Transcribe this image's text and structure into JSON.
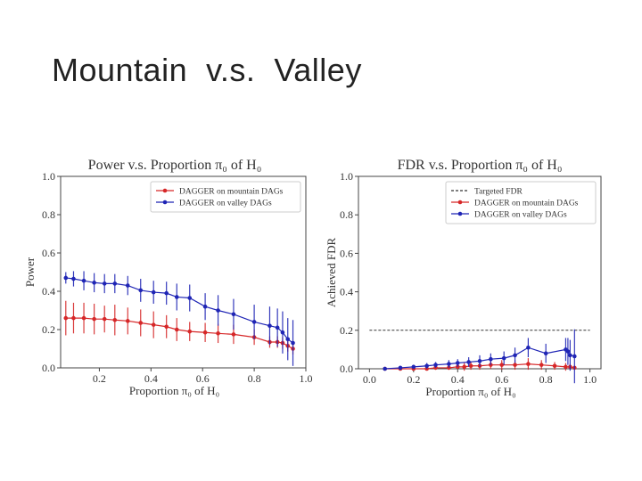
{
  "slide": {
    "title": "Mountain  v.s.  Valley"
  },
  "colors": {
    "mountain": "#d62728",
    "valley": "#1f25b5",
    "target": "#333333"
  },
  "chart_data": [
    {
      "type": "line",
      "title": "Power v.s. Proportion π₀ of H₀",
      "xlabel": "Proportion π₀ of H₀",
      "ylabel": "Power",
      "xlim": [
        0.05,
        1.0
      ],
      "ylim": [
        0.0,
        1.0
      ],
      "xticks": [
        "0.2",
        "0.4",
        "0.6",
        "0.8",
        "1.0"
      ],
      "yticks": [
        "0.0",
        "0.2",
        "0.4",
        "0.6",
        "0.8",
        "1.0"
      ],
      "legend_position": "top-right",
      "series": [
        {
          "name": "DAGGER on mountain DAGs",
          "color_key": "mountain",
          "x": [
            0.07,
            0.1,
            0.14,
            0.18,
            0.22,
            0.26,
            0.31,
            0.36,
            0.41,
            0.46,
            0.5,
            0.55,
            0.61,
            0.66,
            0.72,
            0.8,
            0.86,
            0.89,
            0.91,
            0.93,
            0.95
          ],
          "y": [
            0.26,
            0.26,
            0.26,
            0.255,
            0.255,
            0.25,
            0.245,
            0.235,
            0.225,
            0.215,
            0.2,
            0.19,
            0.185,
            0.18,
            0.175,
            0.16,
            0.135,
            0.135,
            0.13,
            0.115,
            0.1
          ],
          "err": [
            0.09,
            0.08,
            0.08,
            0.08,
            0.07,
            0.08,
            0.07,
            0.07,
            0.07,
            0.06,
            0.06,
            0.05,
            0.05,
            0.05,
            0.05,
            0.04,
            0.03,
            0.03,
            0.03,
            0.03,
            0.03
          ]
        },
        {
          "name": "DAGGER on valley DAGs",
          "color_key": "valley",
          "x": [
            0.07,
            0.1,
            0.14,
            0.18,
            0.22,
            0.26,
            0.31,
            0.36,
            0.41,
            0.46,
            0.5,
            0.55,
            0.61,
            0.66,
            0.72,
            0.8,
            0.86,
            0.89,
            0.91,
            0.93,
            0.95
          ],
          "y": [
            0.47,
            0.465,
            0.455,
            0.445,
            0.44,
            0.44,
            0.43,
            0.405,
            0.395,
            0.39,
            0.37,
            0.365,
            0.32,
            0.3,
            0.28,
            0.24,
            0.22,
            0.21,
            0.185,
            0.15,
            0.13
          ],
          "err": [
            0.03,
            0.04,
            0.05,
            0.05,
            0.05,
            0.05,
            0.05,
            0.06,
            0.06,
            0.06,
            0.07,
            0.07,
            0.07,
            0.08,
            0.08,
            0.09,
            0.1,
            0.1,
            0.11,
            0.11,
            0.12
          ]
        }
      ]
    },
    {
      "type": "line",
      "title": "FDR v.s. Proportion π₀ of H₀",
      "xlabel": "Proportion π₀ of H₀",
      "ylabel": "Achieved FDR",
      "xlim": [
        -0.05,
        1.05
      ],
      "ylim": [
        0.0,
        1.0
      ],
      "xticks": [
        "0.0",
        "0.2",
        "0.4",
        "0.6",
        "0.8",
        "1.0"
      ],
      "yticks": [
        "0.0",
        "0.2",
        "0.4",
        "0.6",
        "0.8",
        "1.0"
      ],
      "legend_position": "top-right",
      "target_fdr": 0.2,
      "target_name": "Targeted FDR",
      "series": [
        {
          "name": "DAGGER on mountain DAGs",
          "color_key": "mountain",
          "x": [
            0.07,
            0.14,
            0.2,
            0.26,
            0.3,
            0.36,
            0.4,
            0.43,
            0.46,
            0.5,
            0.55,
            0.6,
            0.66,
            0.72,
            0.78,
            0.84,
            0.89,
            0.91,
            0.93
          ],
          "y": [
            0.0,
            0.0,
            0.0,
            0.0,
            0.005,
            0.005,
            0.01,
            0.01,
            0.015,
            0.015,
            0.02,
            0.02,
            0.02,
            0.025,
            0.02,
            0.015,
            0.01,
            0.01,
            0.005
          ],
          "err": [
            0.005,
            0.005,
            0.005,
            0.005,
            0.01,
            0.01,
            0.01,
            0.02,
            0.02,
            0.02,
            0.02,
            0.025,
            0.025,
            0.03,
            0.025,
            0.02,
            0.02,
            0.015,
            0.01
          ]
        },
        {
          "name": "DAGGER on valley DAGs",
          "color_key": "valley",
          "x": [
            0.07,
            0.14,
            0.2,
            0.26,
            0.3,
            0.36,
            0.4,
            0.45,
            0.5,
            0.55,
            0.61,
            0.66,
            0.72,
            0.8,
            0.89,
            0.9,
            0.91,
            0.93
          ],
          "y": [
            0.0,
            0.005,
            0.01,
            0.015,
            0.02,
            0.025,
            0.03,
            0.035,
            0.04,
            0.05,
            0.055,
            0.07,
            0.11,
            0.08,
            0.1,
            0.09,
            0.07,
            0.065
          ],
          "err": [
            0.005,
            0.01,
            0.01,
            0.015,
            0.015,
            0.02,
            0.02,
            0.025,
            0.03,
            0.03,
            0.035,
            0.04,
            0.05,
            0.05,
            0.06,
            0.07,
            0.08,
            0.14
          ]
        }
      ]
    }
  ]
}
